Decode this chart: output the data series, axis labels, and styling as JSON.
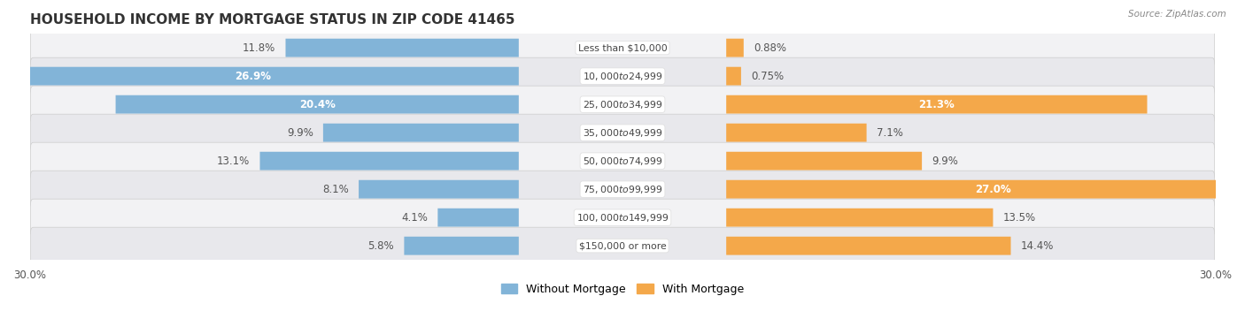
{
  "title": "HOUSEHOLD INCOME BY MORTGAGE STATUS IN ZIP CODE 41465",
  "source_text": "Source: ZipAtlas.com",
  "categories": [
    "Less than $10,000",
    "$10,000 to $24,999",
    "$25,000 to $34,999",
    "$35,000 to $49,999",
    "$50,000 to $74,999",
    "$75,000 to $99,999",
    "$100,000 to $149,999",
    "$150,000 or more"
  ],
  "without_mortgage": [
    11.8,
    26.9,
    20.4,
    9.9,
    13.1,
    8.1,
    4.1,
    5.8
  ],
  "with_mortgage": [
    0.88,
    0.75,
    21.3,
    7.1,
    9.9,
    27.0,
    13.5,
    14.4
  ],
  "without_mortgage_color": "#82b4d8",
  "with_mortgage_color": "#f4a84a",
  "without_mortgage_light": "#aecde8",
  "with_mortgage_light": "#f8cfa0",
  "background_color": "#ffffff",
  "row_bg_odd": "#f2f2f4",
  "row_bg_even": "#e8e8ec",
  "axis_limit": 30.0,
  "legend_labels": [
    "Without Mortgage",
    "With Mortgage"
  ],
  "title_fontsize": 11,
  "label_fontsize": 8.5,
  "category_fontsize": 7.8,
  "axis_label_fontsize": 8.5,
  "large_threshold": 15.0
}
